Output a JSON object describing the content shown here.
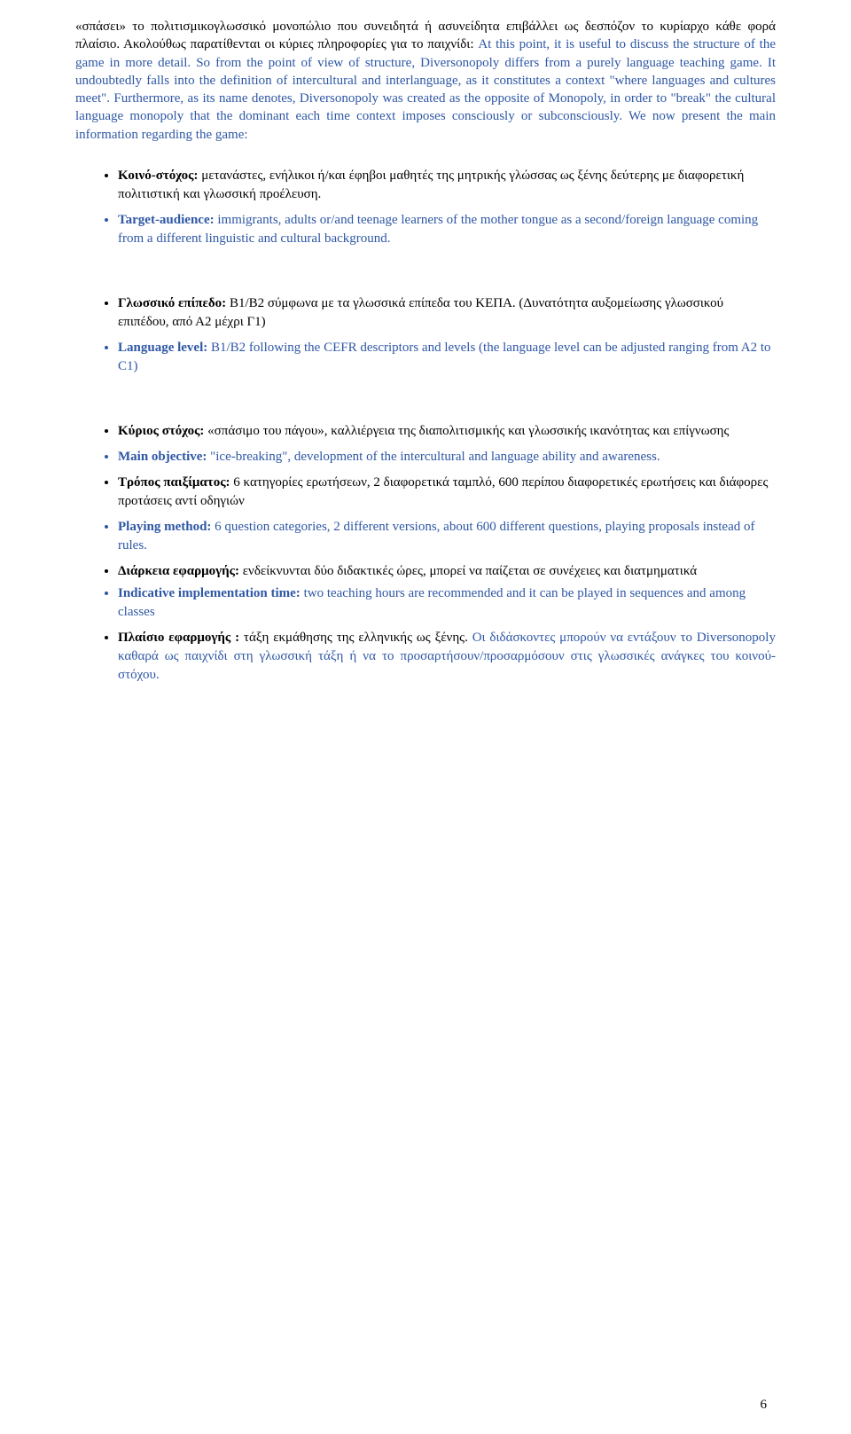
{
  "intro_para": {
    "greek_prefix": "«σπάσει» το πολιτισμικογλωσσικό μονοπώλιο που  συνειδητά ή ασυνείδητα επιβάλλει ως δεσπόζον το κυρίαρχο κάθε φορά πλαίσιο.  Ακολούθως παρατίθενται οι κύριες πληροφορίες για το παιχνίδι:",
    "english_body": "At this point, it is useful to discuss the structure of the game in more detail. So from the point of view of structure, Diversonopoly differs from a purely language teaching game. It undoubtedly falls into the definition of intercultural and interlanguage, as it constitutes a context \"where languages and cultures meet\". Furthermore, as its name denotes, Diversonopoly was created as the opposite of Monopoly, in order to \"break\" the cultural language monopoly that the dominant each time context imposes consciously or subconsciously. We now present the main information regarding the game:"
  },
  "items": {
    "target_gr_label": "Κοινό-στόχος:",
    "target_gr_body": " μετανάστες, ενήλικοι ή/και έφηβοι μαθητές της μητρικής γλώσσας ως ξένης δεύτερης με διαφορετική πολιτιστική και γλωσσική προέλευση.",
    "target_en_label": "Target-audience:",
    "target_en_body": " immigrants, adults or/and teenage learners of the mother tongue as a second/foreign language coming from a different linguistic and cultural background.",
    "level_gr_label": "Γλωσσικό επίπεδο:",
    "level_gr_body": " Β1/Β2 σύμφωνα με τα γλωσσικά επίπεδα του ΚΕΠΑ. (Δυνατότητα αυξομείωσης γλωσσικού επιπέδου, από Α2 μέχρι Γ1)",
    "level_en_label": "Language level:",
    "level_en_body": " B1/B2 following the CEFR descriptors and levels (the language level can be adjusted ranging from A2 to C1)",
    "obj_gr_label": "Κύριος στόχος:",
    "obj_gr_body": " «σπάσιμο του πάγου», καλλιέργεια της διαπολιτισμικής και γλωσσικής ικανότητας και επίγνωσης",
    "obj_en_label": "Main objective:",
    "obj_en_body": " \"ice-breaking\", development of the intercultural and language ability and awareness.",
    "method_gr_label": "Τρόπος παιξίματος:",
    "method_gr_body": " 6 κατηγορίες ερωτήσεων, 2 διαφορετικά ταμπλό, 600 περίπου διαφορετικές ερωτήσεις και διάφορες προτάσεις αντί οδηγιών",
    "method_en_label": "Playing method:",
    "method_en_body": " 6 question categories, 2 different versions, about 600 different questions, playing proposals instead of rules.",
    "time_gr_label": "Διάρκεια εφαρμογής:",
    "time_gr_body": " ενδείκνυνται δύο διδακτικές ώρες, μπορεί να παίζεται σε συνέχειες και διατμηματικά",
    "time_en_label": "Indicative implementation time:",
    "time_en_body": " two teaching hours are recommended and it can be played in sequences and among classes",
    "context_gr_label": "Πλαίσιο  εφαρμογής :",
    "context_gr_body_black": " τάξη εκμάθησης της ελληνικής ως ξένης.",
    "context_gr_body_blue": " Οι διδάσκοντες μπορούν να εντάξουν το Diversonopoly καθαρά ως παιχνίδι στη γλωσσική τάξη ή να το προσαρτήσουν/προσαρμόσουν στις γλωσσικές ανάγκες του κοινού-στόχου."
  },
  "page_number": "6"
}
